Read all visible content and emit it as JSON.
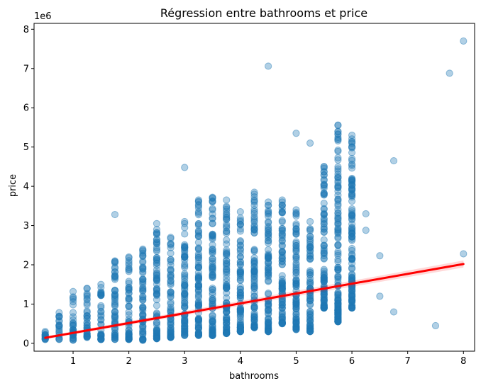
{
  "chart_data": {
    "type": "scatter",
    "title": "Régression entre bathrooms et price",
    "xlabel": "bathrooms",
    "ylabel": "price",
    "y_offset_label": "1e6",
    "xlim": [
      0.3,
      8.2
    ],
    "ylim": [
      -200000,
      8150000
    ],
    "x_ticks": [
      1,
      2,
      3,
      4,
      5,
      6,
      7,
      8
    ],
    "y_ticks": [
      0,
      1000000,
      2000000,
      3000000,
      4000000,
      5000000,
      6000000,
      7000000,
      8000000
    ],
    "y_tick_labels": [
      "0",
      "1",
      "2",
      "3",
      "4",
      "5",
      "6",
      "7",
      "8"
    ],
    "grid": false,
    "point_color": "#1f77b4",
    "line_color": "#ff0000",
    "regression_line": {
      "x": [
        0.5,
        8.0
      ],
      "y": [
        140000,
        2020000
      ]
    },
    "columns": [
      {
        "x": 0.5,
        "ymin": 100000,
        "ymax": 300000
      },
      {
        "x": 0.75,
        "ymin": 100000,
        "ymax": 780000
      },
      {
        "x": 1.0,
        "ymin": 80000,
        "ymax": 1320000
      },
      {
        "x": 1.25,
        "ymin": 150000,
        "ymax": 1400000
      },
      {
        "x": 1.5,
        "ymin": 100000,
        "ymax": 1500000
      },
      {
        "x": 1.75,
        "ymin": 100000,
        "ymax": 2100000
      },
      {
        "x": 2.0,
        "ymin": 100000,
        "ymax": 2200000
      },
      {
        "x": 2.25,
        "ymin": 80000,
        "ymax": 2400000
      },
      {
        "x": 2.5,
        "ymin": 120000,
        "ymax": 3050000
      },
      {
        "x": 2.75,
        "ymin": 150000,
        "ymax": 2700000
      },
      {
        "x": 3.0,
        "ymin": 200000,
        "ymax": 3100000
      },
      {
        "x": 3.25,
        "ymin": 200000,
        "ymax": 3650000
      },
      {
        "x": 3.5,
        "ymin": 200000,
        "ymax": 3720000
      },
      {
        "x": 3.75,
        "ymin": 250000,
        "ymax": 3650000
      },
      {
        "x": 4.0,
        "ymin": 300000,
        "ymax": 3350000
      },
      {
        "x": 4.25,
        "ymin": 400000,
        "ymax": 3850000
      },
      {
        "x": 4.5,
        "ymin": 300000,
        "ymax": 3600000
      },
      {
        "x": 4.75,
        "ymin": 500000,
        "ymax": 3650000
      },
      {
        "x": 5.0,
        "ymin": 350000,
        "ymax": 3400000
      },
      {
        "x": 5.25,
        "ymin": 300000,
        "ymax": 3100000
      },
      {
        "x": 5.5,
        "ymin": 900000,
        "ymax": 4500000
      },
      {
        "x": 5.75,
        "ymin": 550000,
        "ymax": 5550000
      },
      {
        "x": 6.0,
        "ymin": 900000,
        "ymax": 5300000
      }
    ],
    "points": [
      [
        1.75,
        3280000
      ],
      [
        3.0,
        4480000
      ],
      [
        4.5,
        7060000
      ],
      [
        5.0,
        5350000
      ],
      [
        5.25,
        5100000
      ],
      [
        5.5,
        3780000
      ],
      [
        5.5,
        4000000
      ],
      [
        5.5,
        2500000
      ],
      [
        5.5,
        2150000
      ],
      [
        5.5,
        1600000
      ],
      [
        5.5,
        1250000
      ],
      [
        5.75,
        5560000
      ],
      [
        5.75,
        1930000
      ],
      [
        5.75,
        550000
      ],
      [
        6.0,
        4200000
      ],
      [
        6.0,
        3620000
      ],
      [
        6.0,
        2150000
      ],
      [
        6.0,
        1500000
      ],
      [
        6.0,
        900000
      ],
      [
        6.25,
        3300000
      ],
      [
        6.25,
        2880000
      ],
      [
        6.5,
        2230000
      ],
      [
        6.5,
        1200000
      ],
      [
        6.75,
        4650000
      ],
      [
        6.75,
        800000
      ],
      [
        7.5,
        450000
      ],
      [
        7.75,
        6880000
      ],
      [
        8.0,
        7700000
      ],
      [
        8.0,
        2280000
      ],
      [
        4.25,
        3800000
      ],
      [
        3.25,
        3600000
      ],
      [
        3.5,
        3400000
      ],
      [
        4.0,
        3100000
      ],
      [
        2.5,
        2900000
      ],
      [
        3.0,
        3050000
      ],
      [
        3.75,
        3300000
      ],
      [
        4.75,
        3350000
      ],
      [
        4.5,
        2200000
      ],
      [
        5.0,
        2000000
      ],
      [
        5.25,
        1850000
      ],
      [
        5.0,
        1500000
      ],
      [
        5.25,
        1000000
      ],
      [
        5.25,
        650000
      ],
      [
        5.0,
        500000
      ],
      [
        4.75,
        800000
      ],
      [
        4.75,
        1200000
      ],
      [
        4.25,
        2900000
      ],
      [
        4.5,
        3380000
      ],
      [
        5.0,
        3000000
      ],
      [
        5.25,
        2450000
      ],
      [
        5.0,
        1800000
      ],
      [
        5.25,
        1400000
      ],
      [
        4.75,
        2500000
      ],
      [
        5.0,
        800000
      ]
    ]
  }
}
